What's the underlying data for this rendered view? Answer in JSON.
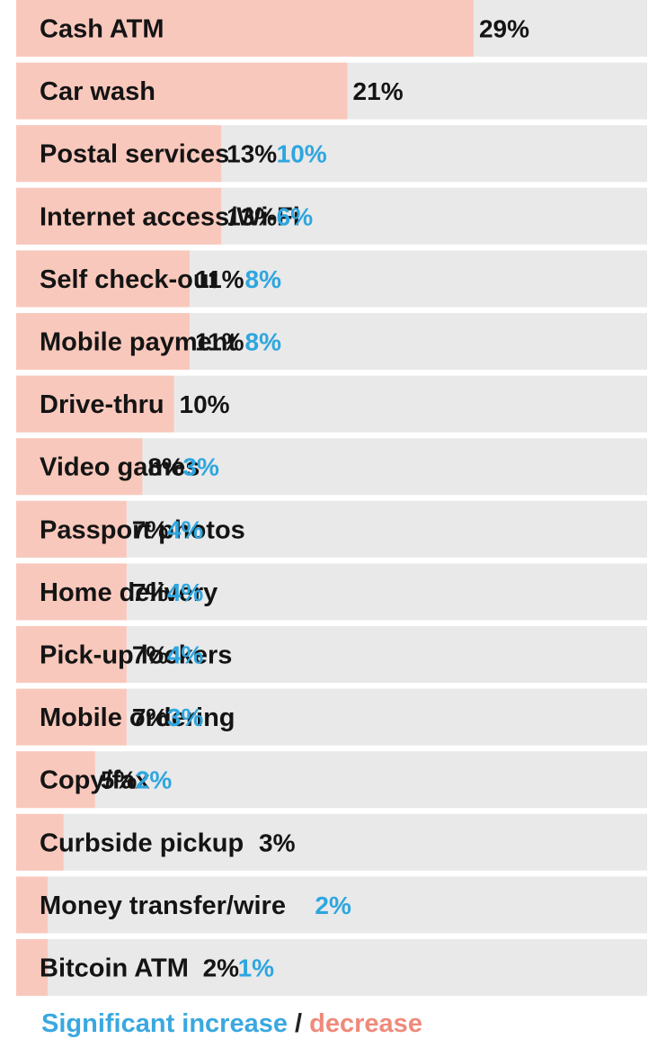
{
  "chart_data": {
    "type": "bar",
    "orientation": "horizontal",
    "categories": [
      "Cash ATM",
      "Car wash",
      "Postal services",
      "Internet access/Wi-Fi",
      "Self check-out",
      "Mobile payment",
      "Drive-thru",
      "Video games",
      "Passport photos",
      "Home delivery",
      "Pick-up lockers",
      "Mobile ordering",
      "Copy/fax",
      "Curbside pickup",
      "Money transfer/wire",
      "Bitcoin ATM"
    ],
    "values": [
      29,
      21,
      13,
      13,
      11,
      11,
      10,
      8,
      7,
      7,
      7,
      7,
      5,
      3,
      2,
      2
    ],
    "value_labels": [
      "29%",
      "21%",
      "13%",
      "13%",
      "11%",
      "11%",
      "10%",
      "8%",
      "7%",
      "7%",
      "7%",
      "7%",
      "5%",
      "3%",
      "",
      "2%"
    ],
    "change_labels": [
      "",
      "",
      "10%",
      "6%",
      "8%",
      "8%",
      "",
      "3%",
      "4%",
      "4%",
      "4%",
      "3%",
      "2%",
      "",
      "2%",
      "1%"
    ],
    "xlim": [
      0,
      40
    ],
    "colors": {
      "bar": "#f9c8bc",
      "track": "#e9e9ea",
      "increase": "#2ea6df",
      "decrease": "#ef8a7b",
      "text": "#141414"
    }
  },
  "legend": {
    "increase": "Significant increase",
    "separator": " / ",
    "decrease": "decrease"
  }
}
